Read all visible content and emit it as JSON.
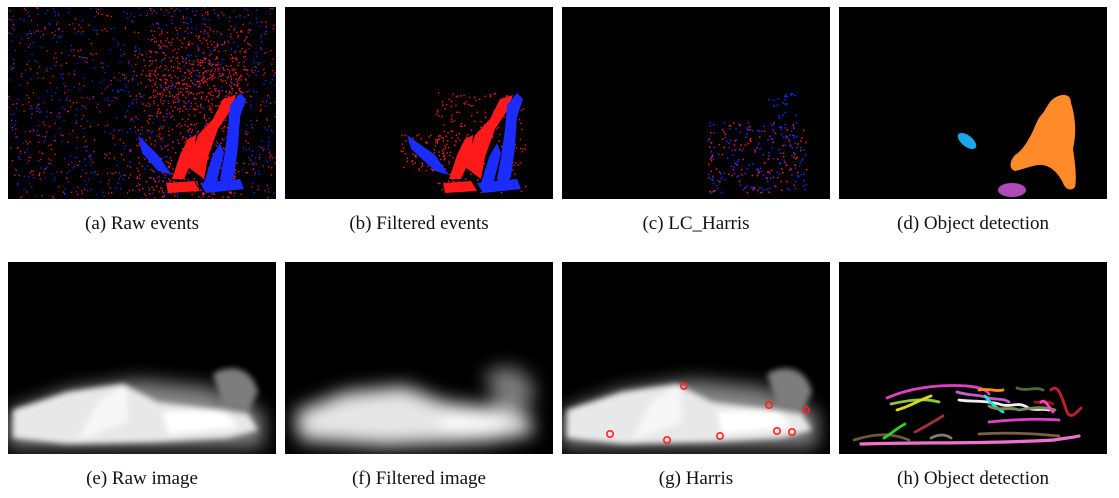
{
  "figure": {
    "panels": [
      {
        "id": "a",
        "caption": "(a)  Raw events"
      },
      {
        "id": "b",
        "caption": "(b)  Filtered events"
      },
      {
        "id": "c",
        "caption": "(c)  LC_Harris"
      },
      {
        "id": "d",
        "caption": "(d)  Object detection"
      },
      {
        "id": "e",
        "caption": "(e)  Raw image"
      },
      {
        "id": "f",
        "caption": "(f)  Filtered image"
      },
      {
        "id": "g",
        "caption": "(g)  Harris"
      },
      {
        "id": "h",
        "caption": "(h)  Object detection"
      }
    ],
    "colors": {
      "event_positive": "#ff1a1a",
      "event_negative": "#1a2cff",
      "object_1": "#1aa6e8",
      "object_2": "#ff8a2a",
      "object_3": "#b04ab8",
      "corner_marker": "#ff2020"
    }
  }
}
